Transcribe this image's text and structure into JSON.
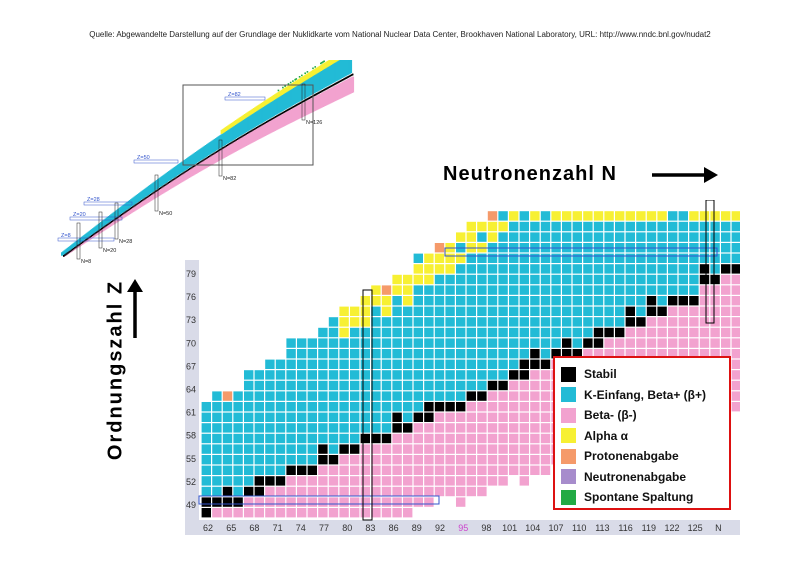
{
  "source_note": "Quelle: Abgewandelte Darstellung auf der Grundlage der Nuklidkarte vom National Nuclear Data Center, Brookhaven National Laboratory, URL: http://www.nndc.bnl.gov/nudat2",
  "axis": {
    "x_title": "Neutronenzahl  N",
    "y_title": "Ordnungszahl  Z"
  },
  "overview": {
    "z_labels": [
      "Z=82",
      "Z=50",
      "Z=28",
      "Z=20",
      "Z=8"
    ],
    "n_labels": [
      "N=126",
      "N=82",
      "N=50",
      "N=28",
      "N=20",
      "N=8"
    ]
  },
  "main": {
    "x_ticks": [
      "62",
      "65",
      "68",
      "71",
      "74",
      "77",
      "80",
      "83",
      "86",
      "89",
      "92",
      "95",
      "98",
      "101",
      "104",
      "107",
      "110",
      "113",
      "116",
      "119",
      "122",
      "125",
      "N"
    ],
    "y_ticks": [
      "79",
      "76",
      "73",
      "70",
      "67",
      "64",
      "61",
      "58",
      "55",
      "52",
      "49"
    ],
    "highlight_tick": "95",
    "highlight_color": "#cc44cc"
  },
  "legend": [
    {
      "label": "Stabil",
      "color": "#000000"
    },
    {
      "label": "K-Einfang, Beta+ (β+)",
      "color": "#22bbd6"
    },
    {
      "label": "Beta- (β-)",
      "color": "#f2a2cf"
    },
    {
      "label": "Alpha α",
      "color": "#f7f033"
    },
    {
      "label": "Protonenabgabe",
      "color": "#f59a6a"
    },
    {
      "label": "Neutronenabgabe",
      "color": "#a78ccc"
    },
    {
      "label": "Spontane Spaltung",
      "color": "#22aa44"
    }
  ],
  "colors": {
    "stable": "#000000",
    "beta_plus": "#22bbd6",
    "beta_minus": "#f2a2cf",
    "alpha": "#f7f033",
    "proton": "#f59a6a",
    "neutron": "#a78ccc",
    "fission": "#22aa44",
    "axis_bg": "#d9dbe8",
    "magic_box": "#3355cc"
  }
}
